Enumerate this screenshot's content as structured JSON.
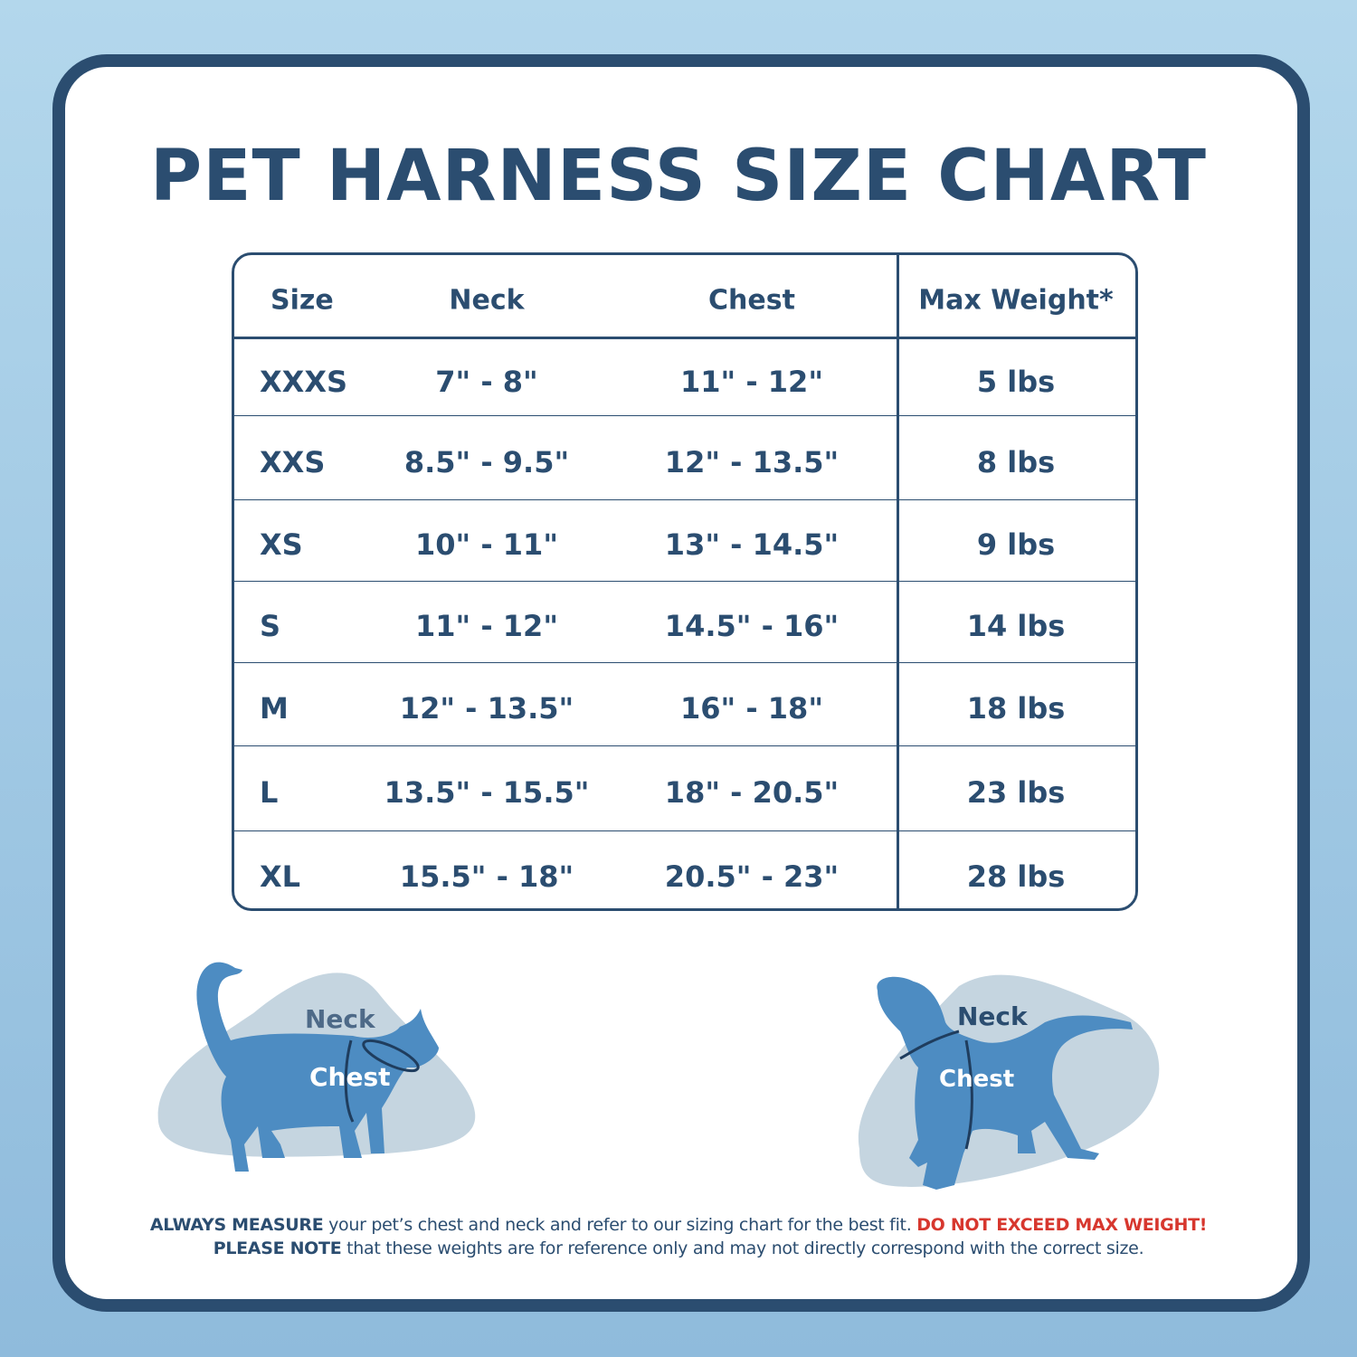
{
  "title": "PET HARNESS SIZE CHART",
  "table": {
    "headers": [
      "Size",
      "Neck",
      "Chest",
      "Max Weight*"
    ],
    "rows": [
      [
        "XXXS",
        "7\" - 8\"",
        "11\" - 12\"",
        "5 lbs"
      ],
      [
        "XXS",
        "8.5\" - 9.5\"",
        "12\" - 13.5\"",
        "8 lbs"
      ],
      [
        "XS",
        "10\" - 11\"",
        "13\" - 14.5\"",
        "9 lbs"
      ],
      [
        "S",
        "11\" - 12\"",
        "14.5\" - 16\"",
        "14 lbs"
      ],
      [
        "M",
        "12\" - 13.5\"",
        "16\" - 18\"",
        "18 lbs"
      ],
      [
        "L",
        "13.5\" - 15.5\"",
        "18\" - 20.5\"",
        "23 lbs"
      ],
      [
        "XL",
        "15.5\" - 18\"",
        "20.5\" - 23\"",
        "28 lbs"
      ]
    ]
  },
  "cat": {
    "neck": "Neck",
    "chest": "Chest"
  },
  "dog": {
    "neck": "Neck",
    "chest": "Chest"
  },
  "footer": {
    "line1_bold": "ALWAYS MEASURE",
    "line1_text": " your pet’s chest and neck and refer  to our sizing chart for the best fit. ",
    "line1_warning": "DO NOT EXCEED MAX WEIGHT!",
    "line2_bold": "PLEASE NOTE",
    "line2_text": " that these weights are for reference only and may not directly correspond with the correct size."
  },
  "colors": {
    "navy": "#2b4d70",
    "pet": "#4d8cc2",
    "blob": "#c5d5e0",
    "warning": "#d7372e",
    "background": "#a9cfe6"
  }
}
